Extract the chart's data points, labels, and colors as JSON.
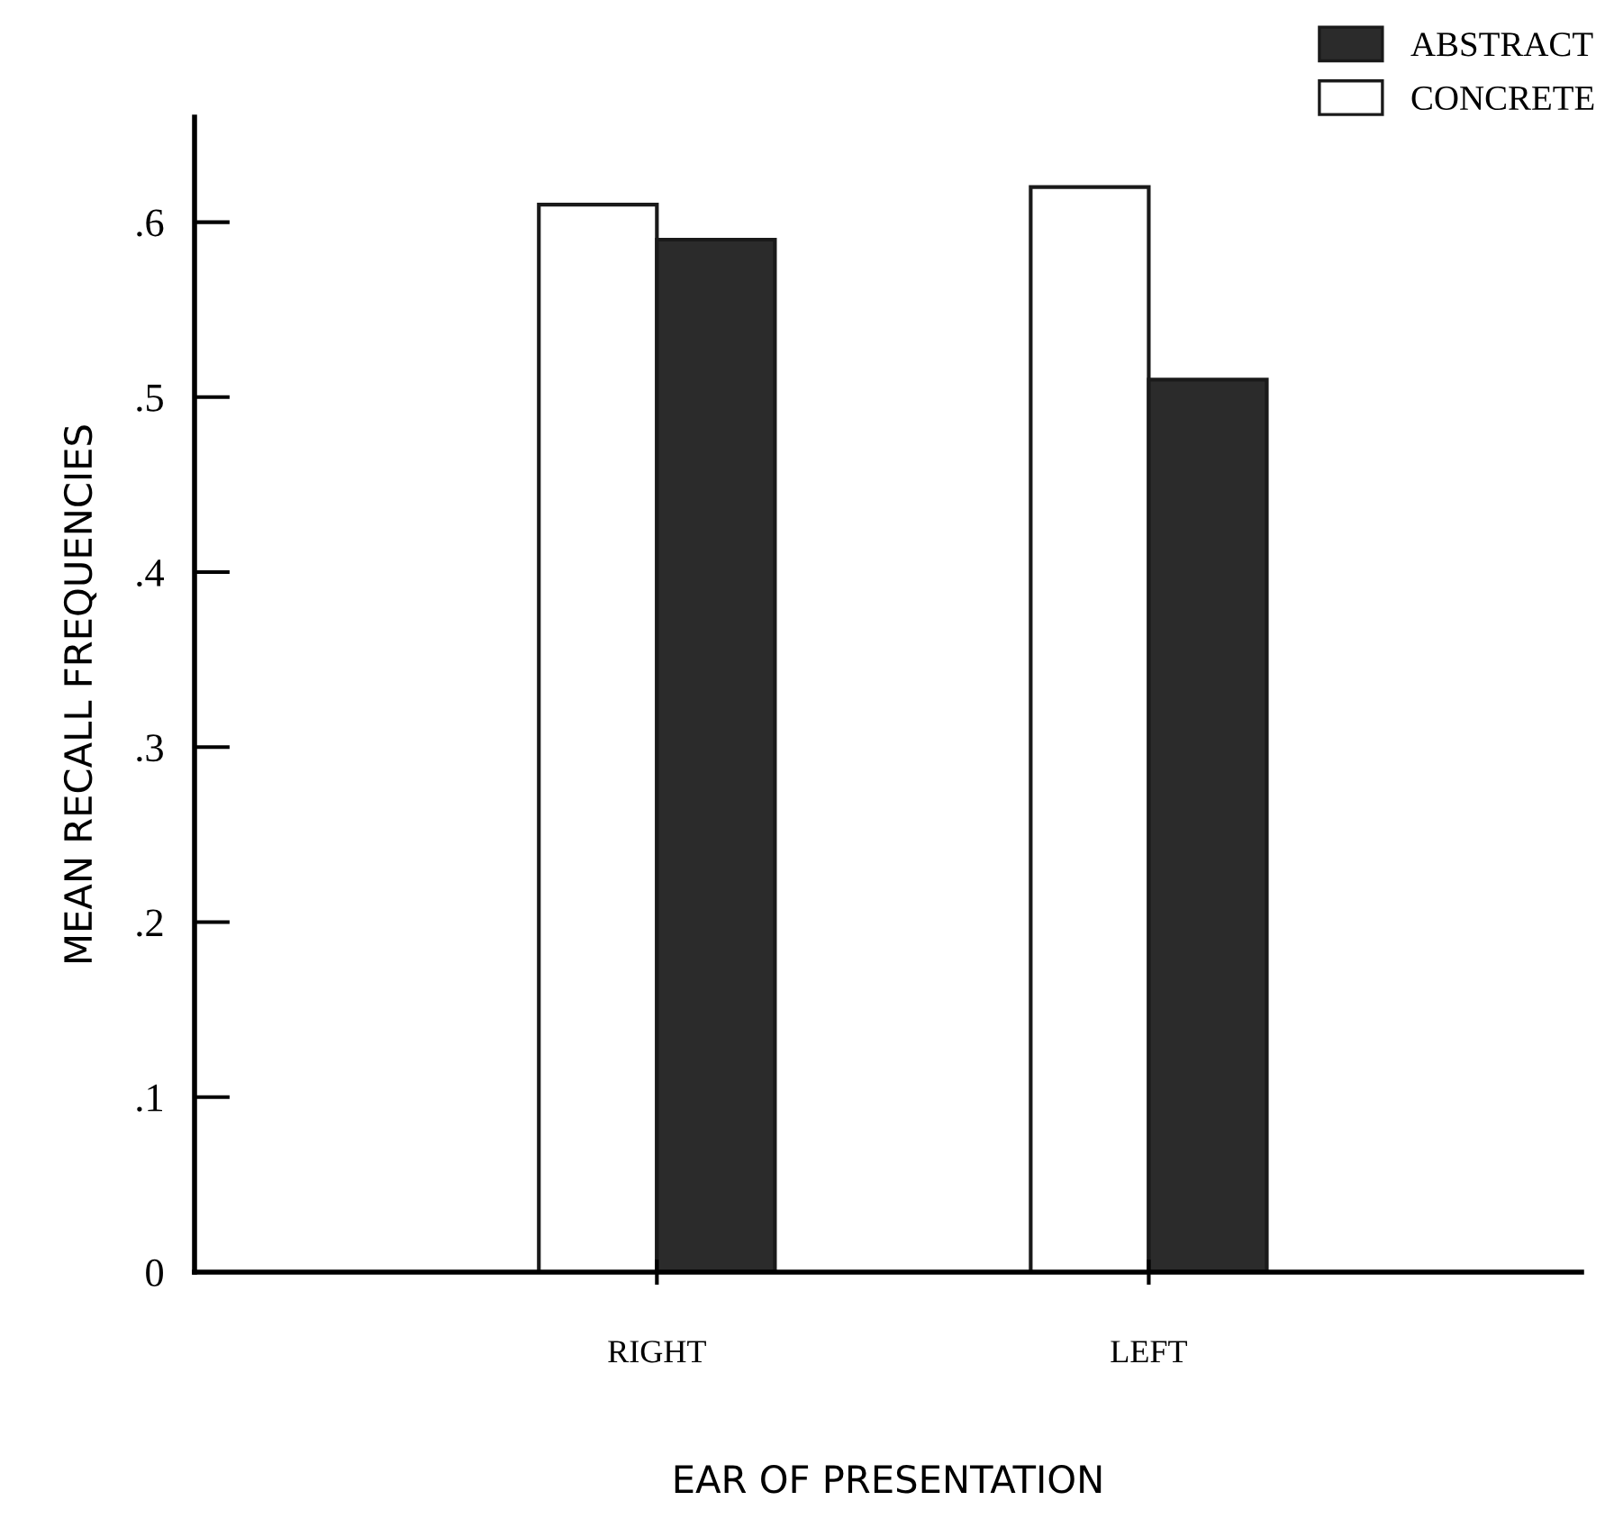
{
  "chart_data": {
    "type": "bar",
    "xlabel": "EAR OF PRESENTATION",
    "ylabel": "MEAN RECALL FREQUENCIES",
    "categories": [
      "RIGHT",
      "LEFT"
    ],
    "series": [
      {
        "name": "CONCRETE",
        "color": "#ffffff",
        "values": [
          0.61,
          0.62
        ]
      },
      {
        "name": "ABSTRACT",
        "color": "#2b2b2b",
        "values": [
          0.59,
          0.51
        ]
      }
    ],
    "ylim": [
      0,
      0.66
    ],
    "yticks": [
      {
        "value": 0,
        "label": "0"
      },
      {
        "value": 0.1,
        "label": ".1"
      },
      {
        "value": 0.2,
        "label": ".2"
      },
      {
        "value": 0.3,
        "label": ".3"
      },
      {
        "value": 0.4,
        "label": ".4"
      },
      {
        "value": 0.5,
        "label": ".5"
      },
      {
        "value": 0.6,
        "label": ".6"
      }
    ],
    "grid": false,
    "legend": "top right"
  }
}
